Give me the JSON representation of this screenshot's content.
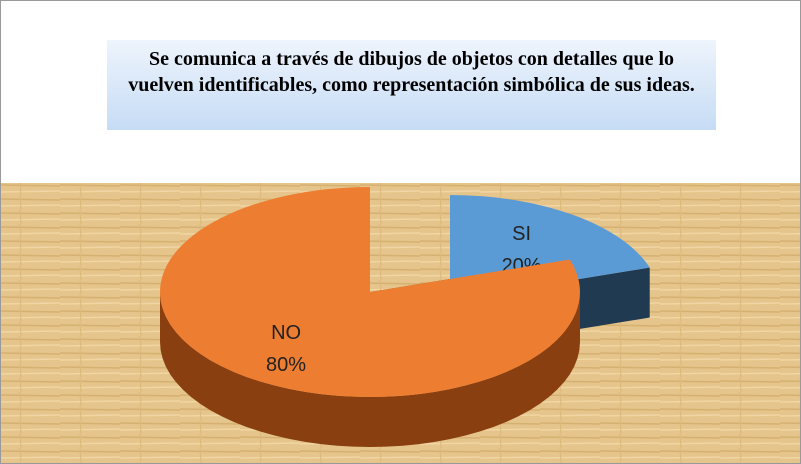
{
  "chart_data": {
    "type": "pie3d",
    "title": "Se comunica a través de dibujos de objetos con detalles que lo vuelven identificables, como representación simbólica de sus ideas.",
    "categories": [
      "SI",
      "NO"
    ],
    "values": [
      20,
      80
    ],
    "value_labels": [
      "20%",
      "80%"
    ],
    "colors": [
      "#5b9bd5",
      "#ed7d31"
    ],
    "side_colors": [
      "#203a52",
      "#8a3f10"
    ]
  }
}
